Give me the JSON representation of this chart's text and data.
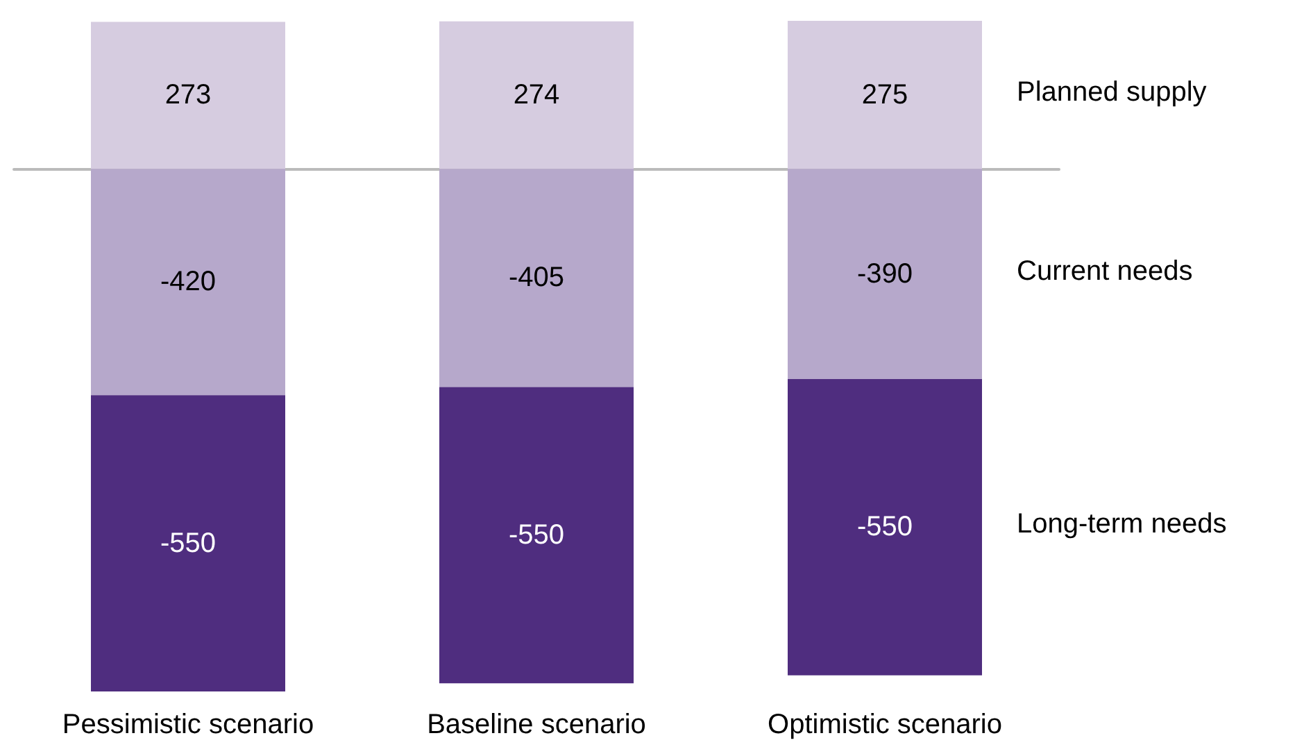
{
  "chart_data": {
    "type": "bar",
    "stacked": true,
    "data_labels": true,
    "legend": false,
    "tick_labels": "x",
    "categories": [
      "Pessimistic scenario",
      "Baseline scenario",
      "Optimistic scenario"
    ],
    "series": [
      {
        "name": "Planned supply",
        "color": "#d6cce0",
        "values": [
          273,
          274,
          275
        ]
      },
      {
        "name": "Current needs",
        "color": "#b6a8cb",
        "values": [
          -420,
          -405,
          -390
        ]
      },
      {
        "name": "Long-term needs",
        "color": "#4f2d7f",
        "values": [
          -550,
          -550,
          -550
        ]
      }
    ]
  }
}
